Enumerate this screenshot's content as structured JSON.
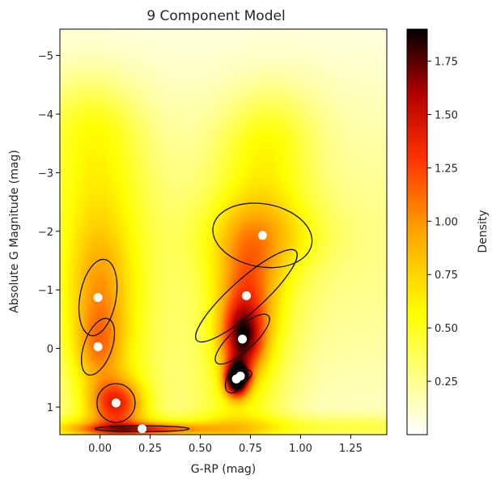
{
  "chart_data": {
    "type": "heatmap",
    "title": "9 Component Model",
    "xlabel": "G-RP (mag)",
    "ylabel": "Absolute G Magnitude (mag)",
    "xlim": [
      -0.2,
      1.43
    ],
    "ylim": [
      1.47,
      -5.45
    ],
    "y_inverted": true,
    "x_ticks": [
      "0.00",
      "0.25",
      "0.50",
      "0.75",
      "1.00",
      "1.25"
    ],
    "x_tick_values": [
      0.0,
      0.25,
      0.5,
      0.75,
      1.0,
      1.25
    ],
    "y_ticks": [
      "−5",
      "−4",
      "−3",
      "−2",
      "−1",
      "0",
      "1"
    ],
    "y_tick_values": [
      -5,
      -4,
      -3,
      -2,
      -1,
      0,
      1
    ],
    "colorbar": {
      "label": "Density",
      "range": [
        0.0,
        1.9
      ],
      "ticks": [
        "0.25",
        "0.50",
        "0.75",
        "1.00",
        "1.25",
        "1.50",
        "1.75"
      ],
      "tick_values": [
        0.25,
        0.5,
        0.75,
        1.0,
        1.25,
        1.5,
        1.75
      ],
      "colormap": "hot_r",
      "colors": [
        "#ffffff",
        "#ffff00",
        "#ffa500",
        "#ff3300",
        "#b30000",
        "#000000"
      ]
    },
    "grid": false,
    "components": [
      {
        "mean_x": -0.01,
        "mean_y": -0.87,
        "sd_major": 0.65,
        "sd_minor": 0.09,
        "angle_deg": 87
      },
      {
        "mean_x": -0.01,
        "mean_y": -0.03,
        "sd_major": 0.48,
        "sd_minor": 0.07,
        "angle_deg": 84
      },
      {
        "mean_x": 0.08,
        "mean_y": 0.93,
        "sd_major": 0.33,
        "sd_minor": 0.095,
        "angle_deg": 90
      },
      {
        "mean_x": 0.21,
        "mean_y": 1.37,
        "sd_major": 0.235,
        "sd_minor": 0.05,
        "angle_deg": 0
      },
      {
        "mean_x": 0.81,
        "mean_y": -1.93,
        "sd_major": 0.53,
        "sd_minor": 0.25,
        "angle_deg": 87
      },
      {
        "mean_x": 0.73,
        "mean_y": -0.9,
        "sd_major": 0.8,
        "sd_minor": 0.085,
        "angle_deg": 72
      },
      {
        "mean_x": 0.71,
        "mean_y": -0.16,
        "sd_major": 0.42,
        "sd_minor": 0.06,
        "angle_deg": 72
      },
      {
        "mean_x": 0.68,
        "mean_y": 0.52,
        "sd_major": 0.23,
        "sd_minor": 0.045,
        "angle_deg": 80
      },
      {
        "mean_x": 0.7,
        "mean_y": 0.47,
        "sd_major": 0.08,
        "sd_minor": 0.04,
        "angle_deg": 45
      }
    ],
    "density_peaks": [
      {
        "x": -0.01,
        "y": -0.9,
        "sx": 0.1,
        "sy": 0.8,
        "amp": 0.35
      },
      {
        "x": -0.01,
        "y": 0.0,
        "sx": 0.08,
        "sy": 0.45,
        "amp": 0.35
      },
      {
        "x": 0.08,
        "y": 0.93,
        "sx": 0.09,
        "sy": 0.28,
        "amp": 0.85
      },
      {
        "x": 0.21,
        "y": 1.37,
        "sx": 0.22,
        "sy": 0.07,
        "amp": 0.75
      },
      {
        "x": 0.81,
        "y": -1.93,
        "sx": 0.22,
        "sy": 0.45,
        "amp": 0.3
      },
      {
        "x": 0.73,
        "y": -0.9,
        "sx": 0.1,
        "sy": 0.65,
        "amp": 0.55
      },
      {
        "x": 0.71,
        "y": -0.15,
        "sx": 0.07,
        "sy": 0.4,
        "amp": 1.0
      },
      {
        "x": 0.68,
        "y": 0.52,
        "sx": 0.04,
        "sy": 0.2,
        "amp": 1.7
      },
      {
        "x": 0.7,
        "y": 0.47,
        "sx": 0.03,
        "sy": 0.06,
        "amp": 0.7
      }
    ]
  }
}
